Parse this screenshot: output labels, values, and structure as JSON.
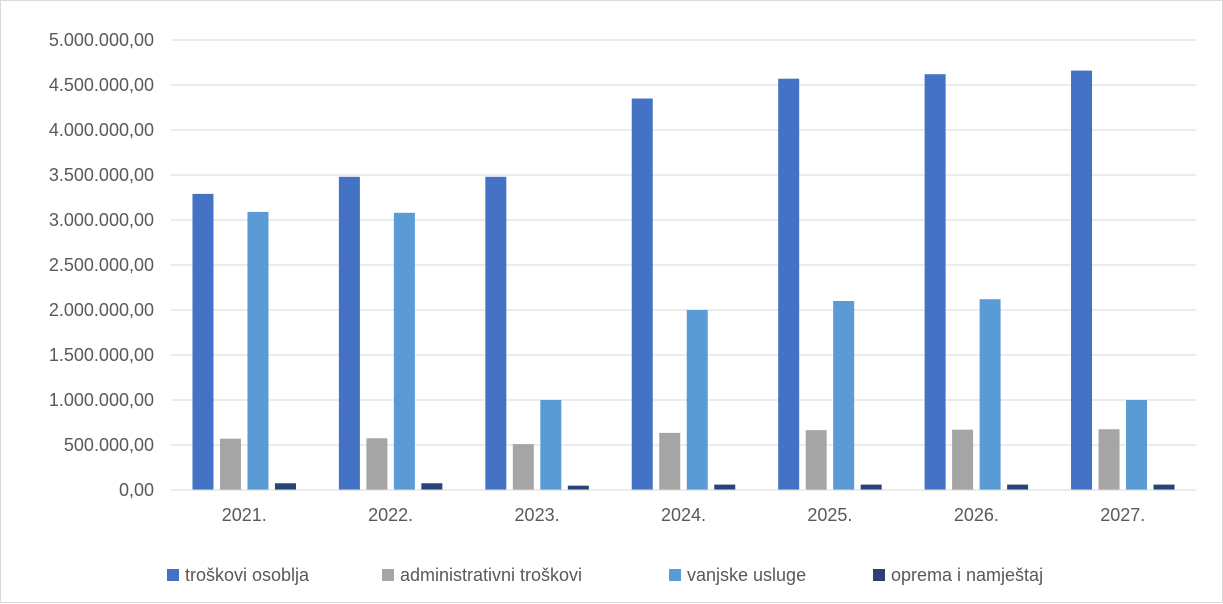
{
  "chart_data": {
    "type": "bar",
    "title": "",
    "xlabel": "",
    "ylabel": "",
    "categories": [
      "2021.",
      "2022.",
      "2023.",
      "2024.",
      "2025.",
      "2026.",
      "2027."
    ],
    "ylim": [
      0,
      5000000
    ],
    "y_ticks": [
      0,
      500000,
      1000000,
      1500000,
      2000000,
      2500000,
      3000000,
      3500000,
      4000000,
      4500000,
      5000000
    ],
    "y_tick_labels": [
      "0,00",
      "500.000,00",
      "1.000.000,00",
      "1.500.000,00",
      "2.000.000,00",
      "2.500.000,00",
      "3.000.000,00",
      "3.500.000,00",
      "4.000.000,00",
      "4.500.000,00",
      "5.000.000,00"
    ],
    "grid": true,
    "legend_position": "bottom",
    "series": [
      {
        "name": "troškovi osoblja",
        "color": "#4472c4",
        "values": [
          3290000,
          3480000,
          3480000,
          4350000,
          4570000,
          4620000,
          4660000
        ]
      },
      {
        "name": "administrativni troškovi",
        "color": "#a5a5a5",
        "values": [
          570000,
          575000,
          510000,
          635000,
          665000,
          670000,
          675000
        ]
      },
      {
        "name": "vanjske usluge",
        "color": "#5b9bd5",
        "values": [
          3090000,
          3080000,
          1000000,
          2000000,
          2100000,
          2120000,
          1000000
        ]
      },
      {
        "name": "oprema i namještaj",
        "color": "#264478",
        "values": [
          75000,
          75000,
          48000,
          60000,
          60000,
          60000,
          60000
        ]
      }
    ]
  }
}
